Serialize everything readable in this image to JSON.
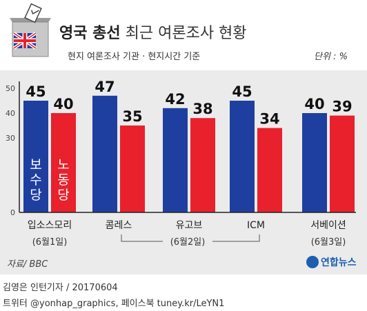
{
  "header": {
    "title_bold": "영국 총선",
    "title_rest": "최근 여론조사 현황",
    "subtitle": "현지 여론조사 기관 · 현지시간 기준",
    "unit": "단위 : %"
  },
  "colors": {
    "conservative": "#1f3fa0",
    "labour": "#e8212d",
    "axis": "#222222"
  },
  "chart_data": {
    "type": "bar",
    "categories": [
      "입소스모리",
      "콤레스",
      "유고브",
      "ICM",
      "서베이션"
    ],
    "series": [
      {
        "name": "보수당",
        "values": [
          45,
          47,
          42,
          45,
          40
        ]
      },
      {
        "name": "노동당",
        "values": [
          40,
          35,
          38,
          34,
          39
        ]
      }
    ],
    "ylim": [
      0,
      50
    ],
    "yticks": [
      0,
      30,
      40,
      50
    ],
    "legend_in_bars": true,
    "date_groups": [
      {
        "label": "(6월1일)",
        "categories": [
          "입소스모리"
        ]
      },
      {
        "label": "(6월2일)",
        "categories": [
          "콤레스",
          "유고브",
          "ICM"
        ]
      },
      {
        "label": "(6월3일)",
        "categories": [
          "서베이션"
        ]
      }
    ]
  },
  "footer": {
    "source": "자료/ BBC",
    "agency": "연합뉴스",
    "credit": "김영은 인턴기자 / 20170604",
    "social": "트위터 @yonhap_graphics, 페이스북 tuney.kr/LeYN1"
  }
}
